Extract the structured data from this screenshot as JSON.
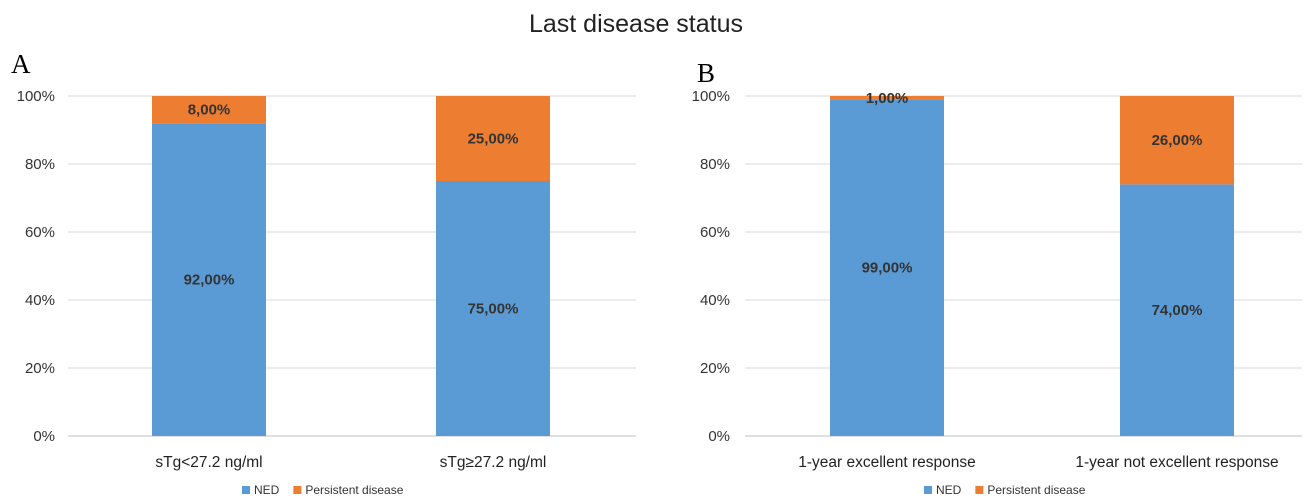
{
  "title": "Last disease status",
  "colors": {
    "ned": "#5b9bd5",
    "persistent": "#ed7d31"
  },
  "chart_data": [
    {
      "type": "bar",
      "stacked": true,
      "panel": "A",
      "categories": [
        "sTg<27.2 ng/ml",
        "sTg≥27.2 ng/ml"
      ],
      "series": [
        {
          "name": "NED",
          "values": [
            92,
            75
          ],
          "labels": [
            "92,00%",
            "75,00%"
          ],
          "color": "#5b9bd5"
        },
        {
          "name": "Persistent disease",
          "values": [
            8,
            25
          ],
          "labels": [
            "8,00%",
            "25,00%"
          ],
          "color": "#ed7d31"
        }
      ],
      "ylim": [
        0,
        100
      ],
      "yticks": [
        "0%",
        "20%",
        "40%",
        "60%",
        "80%",
        "100%"
      ],
      "grid": true,
      "legend": "bottom"
    },
    {
      "type": "bar",
      "stacked": true,
      "panel": "B",
      "categories": [
        "1-year excellent response",
        "1-year not excellent response"
      ],
      "series": [
        {
          "name": "NED",
          "values": [
            99,
            74
          ],
          "labels": [
            "99,00%",
            "74,00%"
          ],
          "color": "#5b9bd5"
        },
        {
          "name": "Persistent disease",
          "values": [
            1,
            26
          ],
          "labels": [
            "1,00%",
            "26,00%"
          ],
          "color": "#ed7d31"
        }
      ],
      "ylim": [
        0,
        100
      ],
      "yticks": [
        "0%",
        "20%",
        "40%",
        "60%",
        "80%",
        "100%"
      ],
      "grid": true,
      "legend": "bottom"
    }
  ]
}
